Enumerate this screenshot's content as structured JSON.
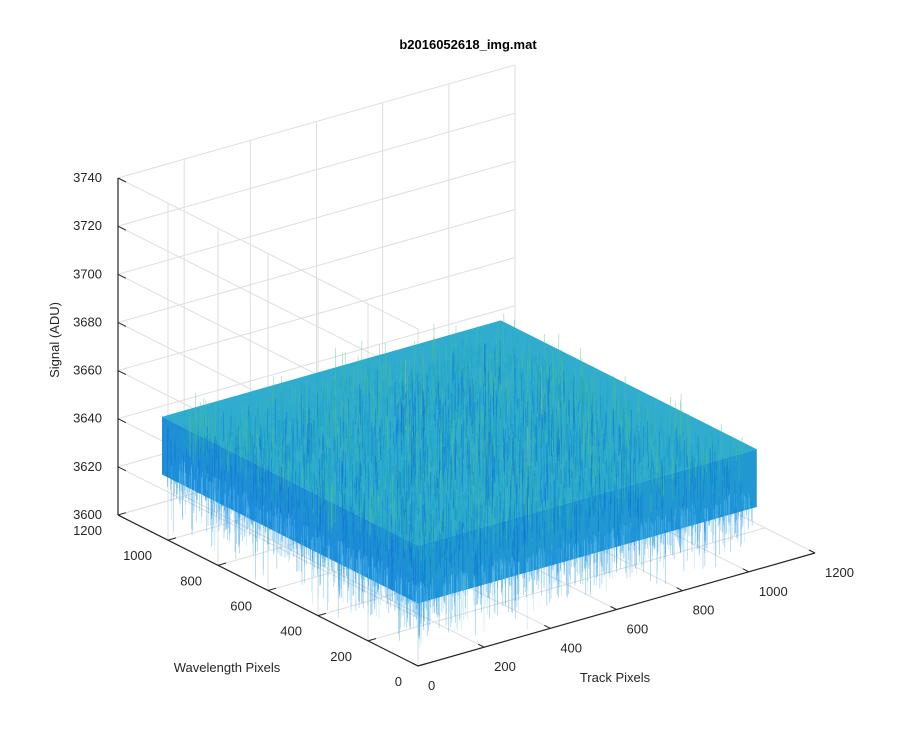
{
  "chart_data": {
    "type": "surface",
    "title": "b2016052618_img.mat",
    "xlabel": "Track Pixels",
    "ylabel": "Wavelength Pixels",
    "zlabel": "Signal (ADU)",
    "xlim": [
      0,
      1200
    ],
    "ylim": [
      0,
      1200
    ],
    "zlim": [
      3600,
      3740
    ],
    "xticks": [
      "0",
      "200",
      "400",
      "600",
      "800",
      "1000",
      "1200"
    ],
    "yticks": [
      "0",
      "200",
      "400",
      "600",
      "800",
      "1000",
      "1200"
    ],
    "zticks": [
      "3600",
      "3620",
      "3640",
      "3660",
      "3680",
      "3700",
      "3720",
      "3740"
    ],
    "surface_extent": {
      "x": [
        0,
        1024
      ],
      "y": [
        0,
        1024
      ]
    },
    "mean_signal": 3640,
    "typical_range": [
      3620,
      3665
    ],
    "grid": true,
    "colormap": "parula",
    "colors": {
      "low": "#0a6fd6",
      "mid": "#1aa3c9",
      "high": "#4ec08a",
      "peak": "#b6d15a"
    }
  }
}
